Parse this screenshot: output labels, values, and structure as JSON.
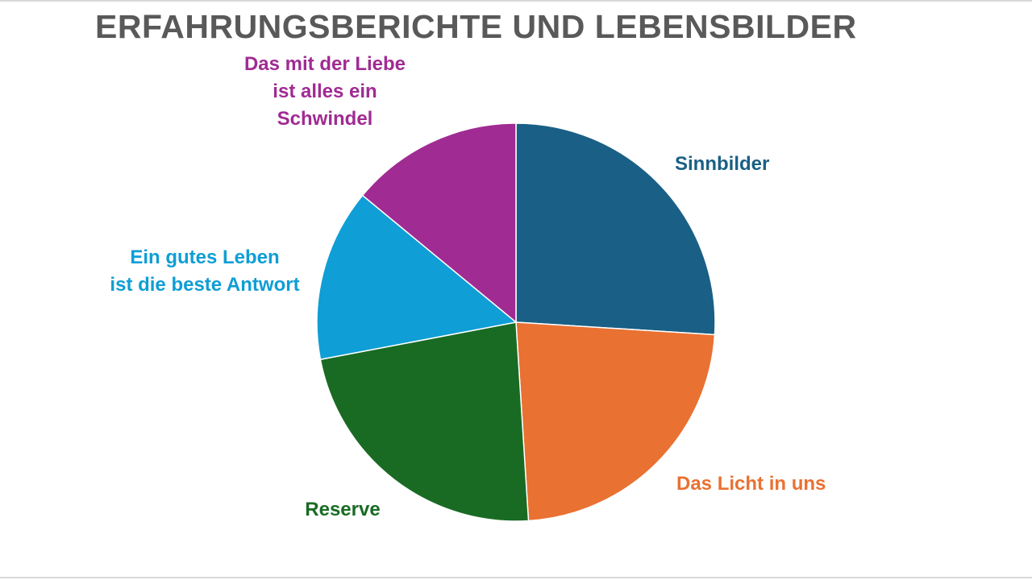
{
  "title": "ERFAHRUNGSBERICHTE UND LEBENSBILDER",
  "chart_data": {
    "type": "pie",
    "start_angle_deg": 0,
    "direction": "clockwise",
    "legend": "none",
    "slices": [
      {
        "label": "Sinnbilder",
        "value": 26,
        "color": "#1a5f85"
      },
      {
        "label": "Das Licht in uns",
        "value": 23,
        "color": "#e97132"
      },
      {
        "label": "Reserve",
        "value": 23,
        "color": "#196b24"
      },
      {
        "label": "Ein gutes Leben ist die beste Antwort",
        "value": 14,
        "color": "#0f9ed5"
      },
      {
        "label": "Das mit der Liebe ist alles ein Schwindel",
        "value": 14,
        "color": "#a02b93"
      }
    ]
  }
}
